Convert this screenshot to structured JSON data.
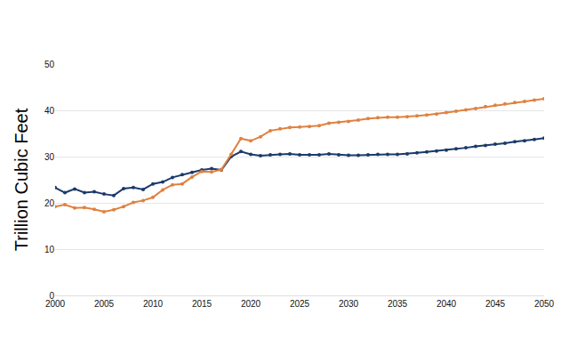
{
  "chart_data": {
    "type": "line",
    "y_label": "Trillion Cubic Feet",
    "x": [
      2000,
      2001,
      2002,
      2003,
      2004,
      2005,
      2006,
      2007,
      2008,
      2009,
      2010,
      2011,
      2012,
      2013,
      2014,
      2015,
      2016,
      2017,
      2018,
      2019,
      2020,
      2021,
      2022,
      2023,
      2024,
      2025,
      2026,
      2027,
      2028,
      2029,
      2030,
      2031,
      2032,
      2033,
      2034,
      2035,
      2036,
      2037,
      2038,
      2039,
      2040,
      2041,
      2042,
      2043,
      2044,
      2045,
      2046,
      2047,
      2048,
      2049,
      2050
    ],
    "series": [
      {
        "color": "#1b3a6b",
        "marker": "circle",
        "values": [
          23.3,
          22.2,
          23.0,
          22.2,
          22.4,
          21.9,
          21.6,
          23.1,
          23.3,
          22.9,
          24.1,
          24.5,
          25.5,
          26.1,
          26.6,
          27.1,
          27.4,
          27.1,
          30.0,
          31.1,
          30.5,
          30.2,
          30.4,
          30.5,
          30.6,
          30.4,
          30.4,
          30.4,
          30.6,
          30.4,
          30.3,
          30.3,
          30.4,
          30.5,
          30.5,
          30.5,
          30.6,
          30.8,
          31.0,
          31.2,
          31.4,
          31.7,
          31.9,
          32.2,
          32.4,
          32.7,
          32.9,
          33.2,
          33.4,
          33.7,
          34.0
        ]
      },
      {
        "color": "#e0813f",
        "marker": "circle",
        "values": [
          19.2,
          19.6,
          18.9,
          19.0,
          18.6,
          18.1,
          18.5,
          19.2,
          20.1,
          20.5,
          21.2,
          22.8,
          23.9,
          24.1,
          25.6,
          26.8,
          26.7,
          27.2,
          30.5,
          33.9,
          33.4,
          34.3,
          35.6,
          36.0,
          36.3,
          36.4,
          36.5,
          36.7,
          37.2,
          37.4,
          37.6,
          37.9,
          38.2,
          38.4,
          38.5,
          38.5,
          38.6,
          38.8,
          39.0,
          39.2,
          39.5,
          39.8,
          40.1,
          40.4,
          40.8,
          41.1,
          41.4,
          41.7,
          41.9,
          42.2,
          42.5
        ]
      }
    ],
    "xlim": [
      2000,
      2050
    ],
    "xticks": [
      2000,
      2005,
      2010,
      2015,
      2020,
      2025,
      2030,
      2035,
      2040,
      2045,
      2050
    ],
    "ylim": [
      0,
      50
    ],
    "yticks": [
      0,
      10,
      20,
      30,
      40,
      50
    ],
    "grid": true
  }
}
